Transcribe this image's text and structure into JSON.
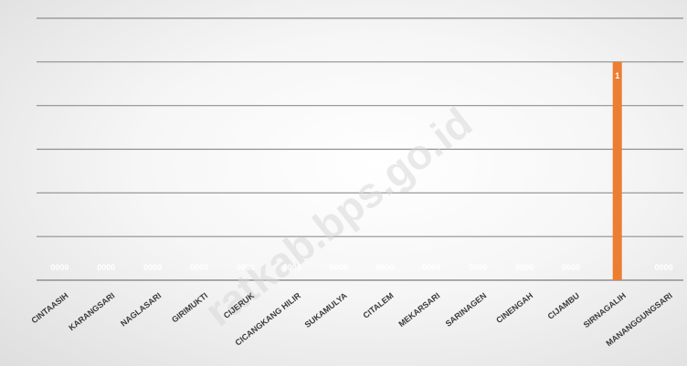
{
  "watermark": "ratkab.bps.go.id",
  "chart_data": {
    "type": "bar",
    "title": "",
    "xlabel": "",
    "ylabel": "",
    "ylim": [
      0,
      1.2
    ],
    "grid": true,
    "legend": "none",
    "categories": [
      "CINTAASIH",
      "KARANGSARI",
      "NAGLASARI",
      "GIRIMUKTI",
      "CIJERUK",
      "CICANGKANG HILIR",
      "SUKAMULYA",
      "CITALEM",
      "MEKARSARI",
      "SARINAGEN",
      "CINENGAH",
      "CIJAMBU",
      "SIRNAGALIH",
      "MANANGGUNGSARI"
    ],
    "series": [
      {
        "values": [
          0,
          0,
          0,
          0,
          0,
          0,
          0,
          0,
          0,
          0,
          0,
          0,
          1,
          0
        ],
        "value_labels": [
          "0000",
          "0000",
          "0000",
          "0000",
          "0000",
          "0000",
          "0000",
          "0000",
          "0000",
          "0000",
          "0000",
          "0000",
          "1",
          "0000"
        ]
      }
    ],
    "colors": {
      "bar": "#ed7d31",
      "gridline": "#8f8f8f",
      "value_label": "#ffffff",
      "category_label": "#3a3a3a"
    }
  }
}
